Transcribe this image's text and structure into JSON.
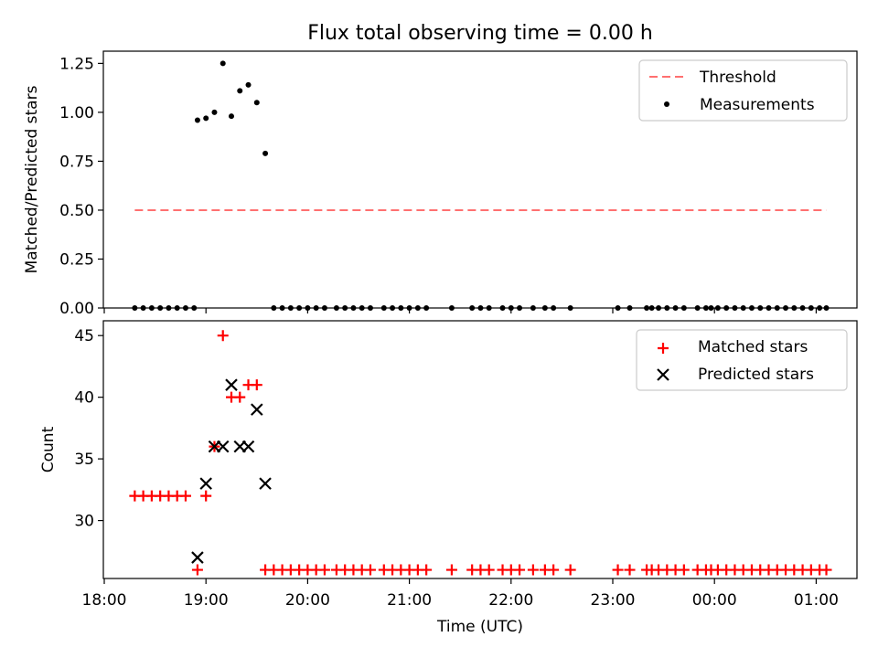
{
  "chart_data": [
    {
      "type": "scatter",
      "title": "Flux total observing time = 0.00 h",
      "xlabel": "",
      "ylabel": "Matched/Predicted stars",
      "xlim": [
        "18:00",
        "01:25"
      ],
      "ylim": [
        0,
        1.3125
      ],
      "yticks": [
        "0.00",
        "0.25",
        "0.50",
        "0.75",
        "1.00",
        "1.25"
      ],
      "legend": {
        "placement": "top-right",
        "entries": [
          "Threshold",
          "Measurements"
        ]
      },
      "threshold": {
        "name": "Threshold",
        "value": 0.5,
        "x_start": "18:18",
        "x_end": "01:06",
        "color": "#ff7070"
      },
      "series": [
        {
          "name": "Measurements",
          "color": "#000000",
          "points": [
            [
              "18:18",
              0
            ],
            [
              "18:23",
              0
            ],
            [
              "18:28",
              0
            ],
            [
              "18:33",
              0
            ],
            [
              "18:38",
              0
            ],
            [
              "18:43",
              0
            ],
            [
              "18:48",
              0
            ],
            [
              "18:53",
              0
            ],
            [
              "18:55",
              0.96
            ],
            [
              "19:00",
              0.97
            ],
            [
              "19:05",
              1.0
            ],
            [
              "19:10",
              1.25
            ],
            [
              "19:15",
              0.98
            ],
            [
              "19:20",
              1.11
            ],
            [
              "19:25",
              1.14
            ],
            [
              "19:30",
              1.05
            ],
            [
              "19:35",
              0.79
            ],
            [
              "19:40",
              0
            ],
            [
              "19:45",
              0
            ],
            [
              "19:50",
              0
            ],
            [
              "19:55",
              0
            ],
            [
              "20:00",
              0
            ],
            [
              "20:05",
              0
            ],
            [
              "20:10",
              0
            ],
            [
              "20:17",
              0
            ],
            [
              "20:22",
              0
            ],
            [
              "20:27",
              0
            ],
            [
              "20:32",
              0
            ],
            [
              "20:37",
              0
            ],
            [
              "20:45",
              0
            ],
            [
              "20:50",
              0
            ],
            [
              "20:55",
              0
            ],
            [
              "21:00",
              0
            ],
            [
              "21:05",
              0
            ],
            [
              "21:10",
              0
            ],
            [
              "21:25",
              0
            ],
            [
              "21:37",
              0
            ],
            [
              "21:42",
              0
            ],
            [
              "21:47",
              0
            ],
            [
              "21:55",
              0
            ],
            [
              "22:00",
              0
            ],
            [
              "22:05",
              0
            ],
            [
              "22:13",
              0
            ],
            [
              "22:20",
              0
            ],
            [
              "22:25",
              0
            ],
            [
              "22:35",
              0
            ],
            [
              "23:03",
              0
            ],
            [
              "23:10",
              0
            ],
            [
              "23:20",
              0
            ],
            [
              "23:23",
              0
            ],
            [
              "23:27",
              0
            ],
            [
              "23:32",
              0
            ],
            [
              "23:37",
              0
            ],
            [
              "23:42",
              0
            ],
            [
              "23:50",
              0
            ],
            [
              "23:55",
              0
            ],
            [
              "23:58",
              0
            ],
            [
              "00:02",
              0
            ],
            [
              "00:07",
              0
            ],
            [
              "00:12",
              0
            ],
            [
              "00:17",
              0
            ],
            [
              "00:22",
              0
            ],
            [
              "00:27",
              0
            ],
            [
              "00:32",
              0
            ],
            [
              "00:37",
              0
            ],
            [
              "00:42",
              0
            ],
            [
              "00:47",
              0
            ],
            [
              "00:52",
              0
            ],
            [
              "00:57",
              0
            ],
            [
              "01:02",
              0
            ],
            [
              "01:06",
              0
            ]
          ]
        }
      ]
    },
    {
      "type": "scatter",
      "title": "",
      "xlabel": "Time (UTC)",
      "ylabel": "Count",
      "xlim": [
        "18:00",
        "01:25"
      ],
      "ylim": [
        25.3,
        46.2
      ],
      "yticks": [
        "30",
        "35",
        "40",
        "45"
      ],
      "xticks": [
        "18:00",
        "19:00",
        "20:00",
        "21:00",
        "22:00",
        "23:00",
        "00:00",
        "01:00"
      ],
      "legend": {
        "placement": "top-right",
        "entries": [
          "Matched stars",
          "Predicted stars"
        ]
      },
      "series": [
        {
          "name": "Matched stars",
          "marker": "plus",
          "color": "#ff0000",
          "points": [
            [
              "18:18",
              32
            ],
            [
              "18:23",
              32
            ],
            [
              "18:28",
              32
            ],
            [
              "18:33",
              32
            ],
            [
              "18:38",
              32
            ],
            [
              "18:43",
              32
            ],
            [
              "18:48",
              32
            ],
            [
              "18:55",
              26
            ],
            [
              "19:00",
              32
            ],
            [
              "19:05",
              36
            ],
            [
              "19:10",
              45
            ],
            [
              "19:15",
              40
            ],
            [
              "19:20",
              40
            ],
            [
              "19:25",
              41
            ],
            [
              "19:30",
              41
            ],
            [
              "19:35",
              26
            ],
            [
              "19:40",
              26
            ],
            [
              "19:45",
              26
            ],
            [
              "19:50",
              26
            ],
            [
              "19:55",
              26
            ],
            [
              "20:00",
              26
            ],
            [
              "20:05",
              26
            ],
            [
              "20:10",
              26
            ],
            [
              "20:17",
              26
            ],
            [
              "20:22",
              26
            ],
            [
              "20:27",
              26
            ],
            [
              "20:32",
              26
            ],
            [
              "20:37",
              26
            ],
            [
              "20:45",
              26
            ],
            [
              "20:50",
              26
            ],
            [
              "20:55",
              26
            ],
            [
              "21:00",
              26
            ],
            [
              "21:05",
              26
            ],
            [
              "21:10",
              26
            ],
            [
              "21:25",
              26
            ],
            [
              "21:37",
              26
            ],
            [
              "21:42",
              26
            ],
            [
              "21:47",
              26
            ],
            [
              "21:55",
              26
            ],
            [
              "22:00",
              26
            ],
            [
              "22:05",
              26
            ],
            [
              "22:13",
              26
            ],
            [
              "22:20",
              26
            ],
            [
              "22:25",
              26
            ],
            [
              "22:35",
              26
            ],
            [
              "23:03",
              26
            ],
            [
              "23:10",
              26
            ],
            [
              "23:20",
              26
            ],
            [
              "23:23",
              26
            ],
            [
              "23:27",
              26
            ],
            [
              "23:32",
              26
            ],
            [
              "23:37",
              26
            ],
            [
              "23:42",
              26
            ],
            [
              "23:50",
              26
            ],
            [
              "23:55",
              26
            ],
            [
              "23:58",
              26
            ],
            [
              "00:02",
              26
            ],
            [
              "00:07",
              26
            ],
            [
              "00:12",
              26
            ],
            [
              "00:17",
              26
            ],
            [
              "00:22",
              26
            ],
            [
              "00:27",
              26
            ],
            [
              "00:32",
              26
            ],
            [
              "00:37",
              26
            ],
            [
              "00:42",
              26
            ],
            [
              "00:47",
              26
            ],
            [
              "00:52",
              26
            ],
            [
              "00:57",
              26
            ],
            [
              "01:02",
              26
            ],
            [
              "01:06",
              26
            ]
          ]
        },
        {
          "name": "Predicted stars",
          "marker": "x",
          "color": "#000000",
          "points": [
            [
              "18:55",
              27
            ],
            [
              "19:00",
              33
            ],
            [
              "19:05",
              36
            ],
            [
              "19:10",
              36
            ],
            [
              "19:15",
              41
            ],
            [
              "19:20",
              36
            ],
            [
              "19:25",
              36
            ],
            [
              "19:30",
              39
            ],
            [
              "19:35",
              33
            ]
          ]
        }
      ]
    }
  ]
}
